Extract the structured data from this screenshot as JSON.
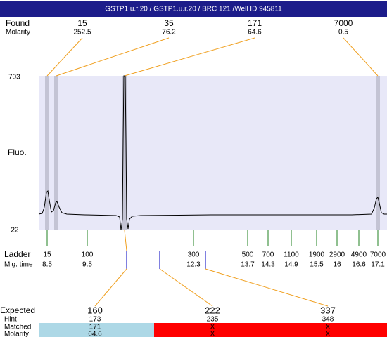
{
  "title": "GSTP1.u.f.20 / GSTP1.u.r.20 / BRC 121 /Well ID 945811",
  "found": {
    "label": "Found",
    "sublabel": "Molarity",
    "peaks": [
      {
        "size": "15",
        "molarity": "252.5"
      },
      {
        "size": "35",
        "molarity": "76.2"
      },
      {
        "size": "171",
        "molarity": "64.6"
      },
      {
        "size": "7000",
        "molarity": "0.5"
      }
    ]
  },
  "yaxis": {
    "label": "Fluo.",
    "max": "703",
    "min": "-22"
  },
  "ladder": {
    "label": "Ladder",
    "sublabel": "Mig. time",
    "items": [
      {
        "size": "15",
        "time": "8.5"
      },
      {
        "size": "100",
        "time": "9.5"
      },
      {
        "size": "300",
        "time": "12.3"
      },
      {
        "size": "500",
        "time": "13.7"
      },
      {
        "size": "700",
        "time": "14.3"
      },
      {
        "size": "1100",
        "time": "14.9"
      },
      {
        "size": "1900",
        "time": "15.5"
      },
      {
        "size": "2900",
        "time": "16"
      },
      {
        "size": "4900",
        "time": "16.6"
      },
      {
        "size": "7000",
        "time": "17.1"
      }
    ]
  },
  "expected": {
    "label": "Expected",
    "hint_label": "Hint",
    "matched_label": "Matched",
    "molarity_label": "Molarity",
    "items": [
      {
        "size": "160",
        "hint": "173",
        "matched": "171",
        "molarity": "64.6"
      },
      {
        "size": "222",
        "hint": "235",
        "matched": "X",
        "molarity": "X"
      },
      {
        "size": "337",
        "hint": "348",
        "matched": "X",
        "molarity": "X"
      }
    ]
  }
}
